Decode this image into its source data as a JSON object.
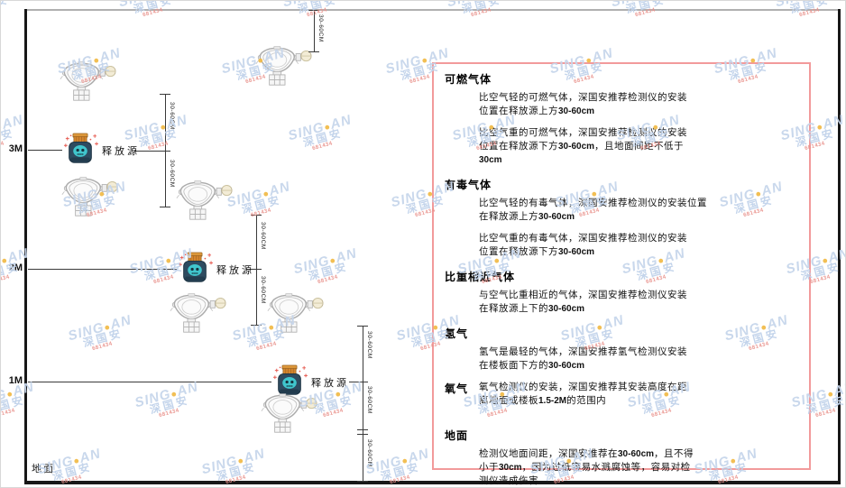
{
  "watermark": {
    "brand": "SING",
    "brand2": "AN",
    "dot": "●",
    "cjk": "深国安",
    "sub": "681434"
  },
  "colors": {
    "panel_border": "#f29a9b",
    "watermark_blue": "#c7d6eb",
    "watermark_dot": "#f2bc4b",
    "watermark_red": "#e9928c",
    "source_lid": "#d4862e",
    "source_body": "#2e4b60",
    "source_skull": "#40c6cd"
  },
  "diagram": {
    "ground_label": "地面",
    "source_label": "释放源",
    "dim_label": "30-60CM",
    "height_markers": [
      {
        "label": "3M"
      },
      {
        "label": "2M"
      },
      {
        "label": "1M"
      }
    ]
  },
  "panel": {
    "sections": [
      {
        "heading": "可燃气体",
        "inline": false,
        "paragraphs": [
          [
            [
              [
                "比空气轻的可燃气体，深国安推荐检测仪的安装",
                0
              ]
            ],
            [
              [
                "位置在释放源上方",
                0
              ],
              [
                "30-60cm",
                1
              ]
            ]
          ],
          [
            [
              [
                "比空气重的可燃气体，深国安推荐检测仪的安装",
                0
              ]
            ],
            [
              [
                "位置在释放源下方",
                0
              ],
              [
                "30-60cm",
                1
              ],
              [
                "，且地面间距不低于",
                0
              ]
            ],
            [
              [
                "30cm",
                1
              ]
            ]
          ]
        ]
      },
      {
        "heading": "有毒气体",
        "inline": false,
        "paragraphs": [
          [
            [
              [
                "比空气轻的有毒气体，深国安推荐检测仪的安装位置",
                0
              ]
            ],
            [
              [
                "在释放源上方",
                0
              ],
              [
                "30-60cm",
                1
              ]
            ]
          ],
          [
            [
              [
                "比空气重的有毒气体，深国安推荐检测仪的安装",
                0
              ]
            ],
            [
              [
                "位置在释放源下方",
                0
              ],
              [
                "30-60cm",
                1
              ]
            ]
          ]
        ]
      },
      {
        "heading": "比重相近气体",
        "inline": false,
        "paragraphs": [
          [
            [
              [
                "与空气比重相近的气体，深国安推荐检测仪安装",
                0
              ]
            ],
            [
              [
                "在释放源上下的",
                0
              ],
              [
                "30-60cm",
                1
              ]
            ]
          ]
        ]
      },
      {
        "heading": "氢气",
        "inline": false,
        "paragraphs": [
          [
            [
              [
                "氢气是最轻的气体，深国安推荐氢气检测仪安装",
                0
              ]
            ],
            [
              [
                "在楼板面下方的",
                0
              ],
              [
                "30-60cm",
                1
              ]
            ]
          ]
        ]
      },
      {
        "heading": "氧气",
        "inline": true,
        "paragraphs": [
          [
            [
              [
                "氧气检测仪的安装，深国安推荐其安装高度在距",
                0
              ]
            ],
            [
              [
                "离地面或楼板",
                0
              ],
              [
                "1.5-2M",
                1
              ],
              [
                "的范围内",
                0
              ]
            ]
          ]
        ]
      },
      {
        "heading": "地面",
        "inline": false,
        "paragraphs": [
          [
            [
              [
                "检测仪地面间距，深国安推荐在",
                0
              ],
              [
                "30-60cm",
                1
              ],
              [
                "，且不得",
                0
              ]
            ],
            [
              [
                "小于",
                0
              ],
              [
                "30cm",
                1
              ],
              [
                "，因为过低容易水溅腐蚀等，容易对检",
                0
              ]
            ],
            [
              [
                "测仪造成伤害",
                0
              ]
            ]
          ]
        ]
      }
    ]
  }
}
